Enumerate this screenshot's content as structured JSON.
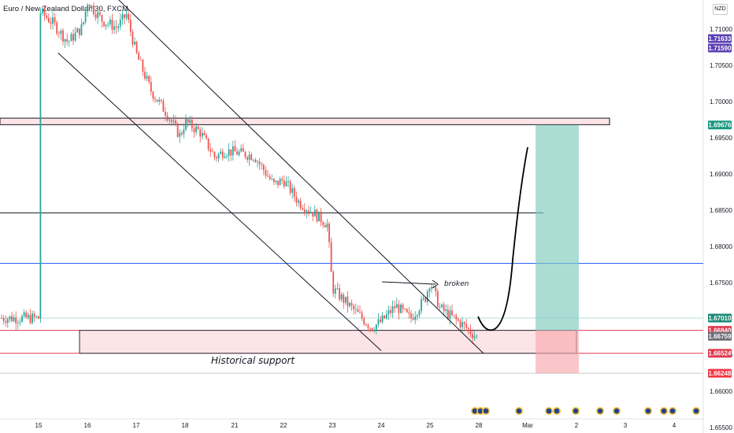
{
  "title": "Euro / New Zealand Dollar, 30, FXCM",
  "currency_badge": "NZD",
  "annotations": {
    "historical_support": "Historical support",
    "broken": "broken"
  },
  "chart_data": {
    "type": "candlestick",
    "ylim": [
      1.6525,
      1.7225
    ],
    "y_ticks": [
      {
        "label": "1.72000",
        "value": 1.72
      },
      {
        "label": "1.71500",
        "value": 1.715
      },
      {
        "label": "1.71000",
        "value": 1.71
      },
      {
        "label": "1.70500",
        "value": 1.705
      },
      {
        "label": "1.70000",
        "value": 1.7
      },
      {
        "label": "1.69500",
        "value": 1.695
      },
      {
        "label": "1.69000",
        "value": 1.69
      },
      {
        "label": "1.68500",
        "value": 1.685
      },
      {
        "label": "1.68000",
        "value": 1.68
      },
      {
        "label": "1.67500",
        "value": 1.675
      },
      {
        "label": "1.66500",
        "value": 1.665
      },
      {
        "label": "1.66000",
        "value": 1.66
      },
      {
        "label": "1.65500",
        "value": 1.655
      }
    ],
    "x_ticks": [
      "15",
      "16",
      "17",
      "18",
      "21",
      "22",
      "23",
      "24",
      "25",
      "28",
      "Mar",
      "2",
      "3",
      "4"
    ],
    "price_tags": [
      {
        "label": "1.71633",
        "value": 1.71633,
        "color": "#5b3fb2"
      },
      {
        "label": "1.71590",
        "value": 1.7159,
        "color": "#5b3fb2"
      },
      {
        "label": "1.69676",
        "value": 1.69676,
        "color": "#17977e"
      },
      {
        "label": "1.67010",
        "value": 1.6701,
        "color": "#1e8a78"
      },
      {
        "label": "1.66840",
        "value": 1.6684,
        "color": "#e0384d"
      },
      {
        "label": "1.66759",
        "value": 1.66759,
        "color": "#6a6d78"
      },
      {
        "label": "1.66524",
        "value": 1.66524,
        "color": "#e0384d"
      },
      {
        "label": "1.66248",
        "value": 1.66248,
        "color": "#f23645"
      }
    ],
    "horizontal_levels": [
      {
        "value": 1.71633,
        "color": "#5b3fb2"
      },
      {
        "value": 1.7159,
        "color": "#5b3fb2"
      },
      {
        "value": 1.68462,
        "color": "#131722"
      },
      {
        "value": 1.67765,
        "color": "#2962ff"
      },
      {
        "value": 1.6701,
        "color": "#b2dfdb"
      },
      {
        "value": 1.6684,
        "color": "#e0384d"
      },
      {
        "value": 1.66524,
        "color": "#e0384d"
      },
      {
        "value": 1.66248,
        "color": "#cccccc"
      }
    ],
    "resistance_zone": [
      1.6968,
      1.6977
    ],
    "support_zone": [
      1.66524,
      1.6684
    ],
    "position": {
      "entry": 1.6684,
      "target": 1.69676,
      "stop": 1.66248
    },
    "channel": {
      "upper": [
        {
          "x": "16.6",
          "y": 1.7143
        },
        {
          "x": "26.1",
          "y": 1.6652
        }
      ],
      "lower": [
        {
          "x": "15.4",
          "y": 1.7067
        },
        {
          "x": "24",
          "y": 1.6656
        }
      ]
    },
    "close_path": [
      [
        "15",
        1.7126
      ],
      [
        "15.3",
        1.7108
      ],
      [
        "15.6",
        1.7082
      ],
      [
        "15.9",
        1.7103
      ],
      [
        "16",
        1.7138
      ],
      [
        "16.3",
        1.7112
      ],
      [
        "16.6",
        1.7102
      ],
      [
        "16.8",
        1.712
      ],
      [
        "17",
        1.7066
      ],
      [
        "17.3",
        1.7015
      ],
      [
        "17.6",
        1.6986
      ],
      [
        "17.9",
        1.6952
      ],
      [
        "18",
        1.6972
      ],
      [
        "18.3",
        1.6958
      ],
      [
        "18.6",
        1.6923
      ],
      [
        "18.8",
        1.6932
      ],
      [
        "21",
        1.693
      ],
      [
        "21.4",
        1.6925
      ],
      [
        "21.8",
        1.6885
      ],
      [
        "22",
        1.6892
      ],
      [
        "22.3",
        1.6862
      ],
      [
        "22.6",
        1.6847
      ],
      [
        "22.9",
        1.683
      ],
      [
        "23",
        1.6742
      ],
      [
        "23.2",
        1.6728
      ],
      [
        "23.5",
        1.6708
      ],
      [
        "23.8",
        1.6688
      ],
      [
        "24",
        1.6696
      ],
      [
        "24.3",
        1.6718
      ],
      [
        "24.6",
        1.67
      ],
      [
        "24.9",
        1.6728
      ],
      [
        "25",
        1.6752
      ],
      [
        "25.2",
        1.6715
      ],
      [
        "25.5",
        1.67
      ],
      [
        "25.7",
        1.669
      ],
      [
        "26",
        1.6672
      ],
      [
        "26.2",
        1.668
      ],
      [
        "26.4",
        1.669
      ],
      [
        "26.6",
        1.6698
      ],
      [
        "28",
        1.6701
      ]
    ]
  }
}
